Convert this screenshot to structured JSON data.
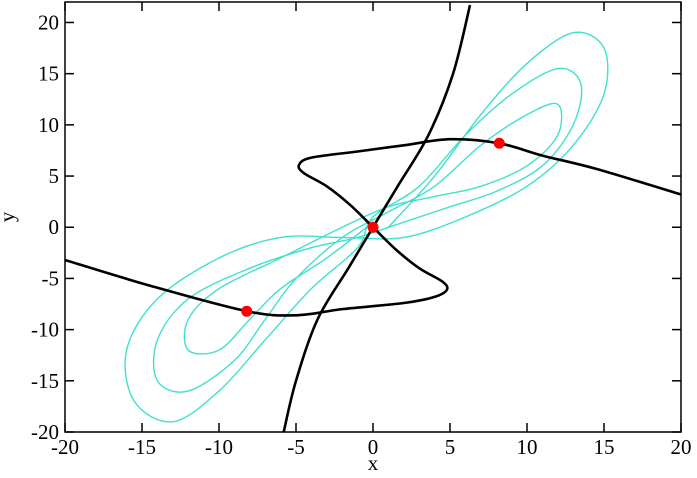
{
  "chart_data": {
    "type": "line",
    "xlabel": "x",
    "ylabel": "y",
    "xlim": [
      -20,
      20
    ],
    "ylim": [
      -20,
      22
    ],
    "xticks": [
      -20,
      -15,
      -10,
      -5,
      0,
      5,
      10,
      15,
      20
    ],
    "yticks": [
      -20,
      -15,
      -10,
      -5,
      0,
      5,
      10,
      15,
      20
    ],
    "series": [
      {
        "type": "line",
        "color": "#40e0d0",
        "width": 1.4,
        "x": [
          1,
          4,
          7,
          10,
          13,
          15,
          15,
          13,
          10,
          6,
          2,
          -2,
          -6,
          -10,
          -14,
          -16,
          -15.5,
          -13,
          -10,
          -7,
          -4,
          -1,
          0,
          3,
          6,
          9,
          12,
          13.5,
          13,
          11,
          8,
          5,
          2,
          -1,
          -4,
          -8,
          -12,
          -14,
          -14,
          -12,
          -9,
          -7,
          -5,
          -2,
          1,
          4,
          7,
          10,
          12,
          12,
          10,
          7,
          4,
          1,
          -2,
          -6,
          -10,
          -12,
          -12,
          -10,
          -8,
          -6,
          -3,
          0
        ],
        "y": [
          0,
          5,
          11,
          16,
          19,
          17.5,
          13,
          8,
          4,
          1,
          -1,
          -1,
          -1,
          -3,
          -7,
          -12,
          -17,
          -19,
          -16,
          -11,
          -6,
          -2,
          1,
          4,
          9,
          13,
          15.5,
          14,
          10,
          6,
          3.5,
          2,
          0.5,
          -1,
          -2,
          -4,
          -7,
          -11,
          -15,
          -16,
          -13,
          -9,
          -5,
          -1,
          1.5,
          4,
          8,
          11,
          12,
          9,
          6,
          4,
          3,
          2,
          0,
          -3,
          -6,
          -9,
          -12,
          -12,
          -9,
          -6,
          -3,
          0.5
        ]
      },
      {
        "type": "line",
        "color": "#000000",
        "width": 2.6,
        "x": [
          -20,
          -14.5,
          -8.2,
          -5,
          -2,
          2,
          4,
          4.8,
          4.5,
          3,
          1.5,
          0,
          -1.5,
          -3,
          -4.5,
          -4.8,
          -4,
          -1,
          2,
          5,
          8.2,
          11,
          14.5,
          20
        ],
        "y": [
          -3.2,
          -5.7,
          -8.2,
          -8.6,
          -8,
          -7.4,
          -6.8,
          -6.1,
          -5.3,
          -4,
          -2.2,
          0,
          2.2,
          4,
          5.3,
          6.1,
          6.8,
          7.4,
          8,
          8.6,
          8.2,
          7,
          5.7,
          3.2
        ]
      },
      {
        "type": "line",
        "color": "#000000",
        "width": 2.6,
        "x": [
          -5.8,
          -5,
          -3.6,
          -1.6,
          0,
          1.6,
          3.6,
          5.2,
          6.3
        ],
        "y": [
          -20,
          -15,
          -9,
          -4,
          0,
          4,
          9,
          15,
          21.7
        ]
      },
      {
        "type": "scatter",
        "color": "#ff0000",
        "x": [
          -8.2,
          0,
          8.2
        ],
        "y": [
          -8.2,
          0,
          8.2
        ]
      }
    ]
  }
}
